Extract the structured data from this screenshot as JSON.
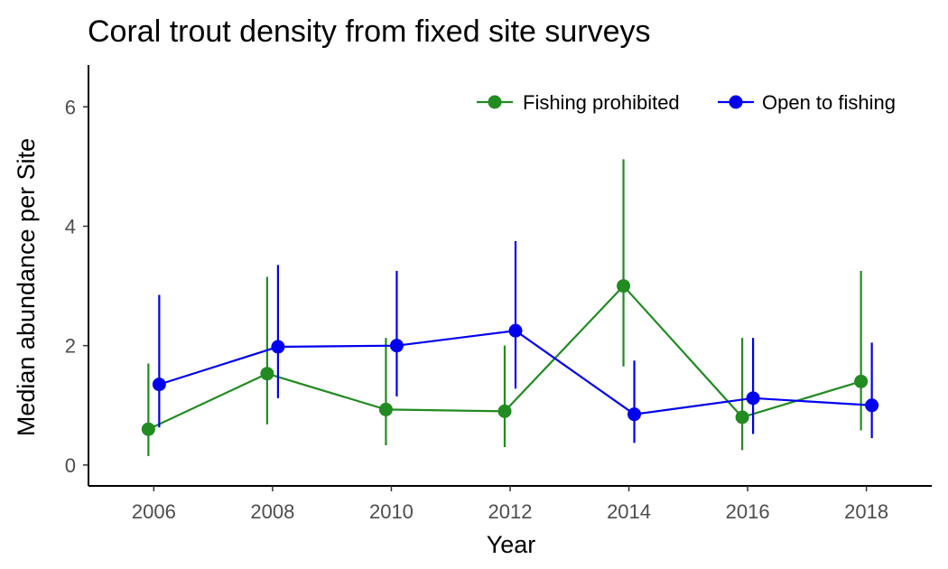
{
  "chart_data": {
    "type": "line",
    "title": "Coral trout density from fixed site surveys",
    "xlabel": "Year",
    "ylabel": "Median abundance per Site",
    "x": [
      2006,
      2008,
      2010,
      2012,
      2014,
      2016,
      2018
    ],
    "xlim": [
      2004.9,
      2019.1
    ],
    "ylim": [
      -0.35,
      6.7
    ],
    "yticks": [
      0,
      2,
      4,
      6
    ],
    "grid": false,
    "legend_position": "top-right",
    "series": [
      {
        "name": "Fishing prohibited",
        "color": "#228B22",
        "values": [
          0.6,
          1.53,
          0.93,
          0.9,
          3.0,
          0.8,
          1.4
        ],
        "lower": [
          0.15,
          0.68,
          0.33,
          0.3,
          1.65,
          0.25,
          0.58
        ],
        "upper": [
          1.7,
          3.15,
          2.13,
          2.0,
          5.12,
          2.13,
          3.25
        ]
      },
      {
        "name": "Open to fishing",
        "color": "#0000EE",
        "values": [
          1.35,
          1.98,
          2.0,
          2.25,
          0.85,
          1.12,
          1.0
        ],
        "lower": [
          0.63,
          1.12,
          1.15,
          1.28,
          0.37,
          0.52,
          0.45
        ],
        "upper": [
          2.85,
          3.35,
          3.25,
          3.75,
          1.75,
          2.13,
          2.05
        ]
      }
    ]
  }
}
